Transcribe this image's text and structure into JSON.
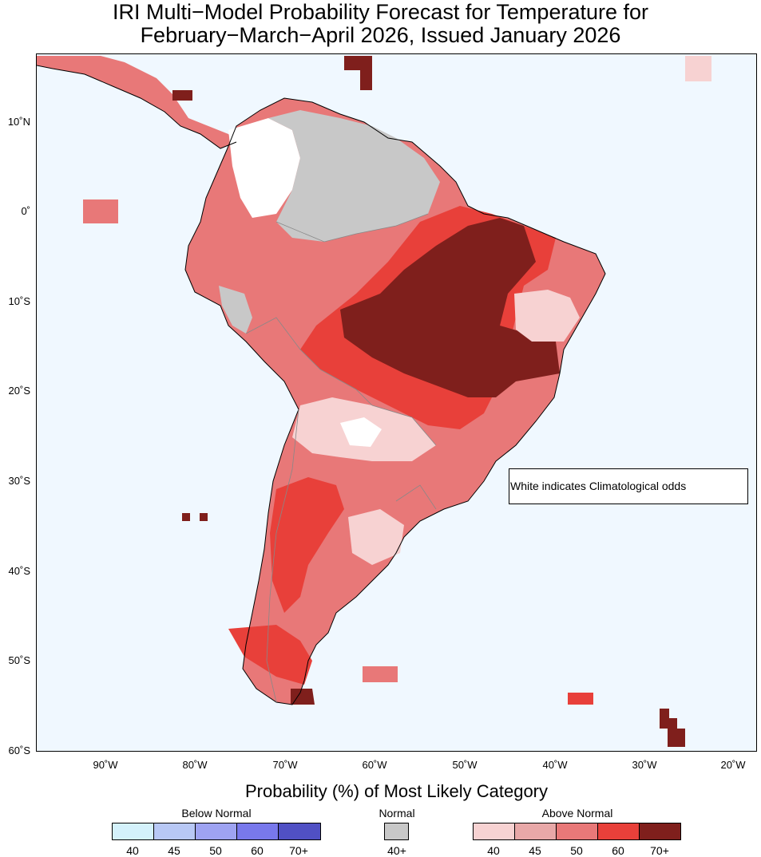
{
  "title": {
    "line1": "IRI Multi−Model Probability Forecast for Temperature for",
    "line2": "February−March−April 2026, Issued January 2026"
  },
  "map": {
    "lat_labels": [
      "10˚N",
      "0˚",
      "10˚S",
      "20˚S",
      "30˚S",
      "40˚S",
      "50˚S",
      "60˚S"
    ],
    "lon_labels": [
      "90˚W",
      "80˚W",
      "70˚W",
      "60˚W",
      "50˚W",
      "40˚W",
      "30˚W",
      "20˚W"
    ],
    "ocean_color": "#f0f8ff",
    "note": "White indicates Climatological odds"
  },
  "legend": {
    "title": "Probability (%) of Most Likely Category",
    "below_normal": {
      "label": "Below Normal",
      "levels": [
        "40",
        "45",
        "50",
        "60",
        "70+"
      ],
      "colors": [
        "#d4f1fb",
        "#b8c8f5",
        "#9ea3f2",
        "#7878ec",
        "#5050c4"
      ]
    },
    "normal": {
      "label": "Normal",
      "levels": [
        "40+"
      ],
      "colors": [
        "#c8c8c8"
      ]
    },
    "above_normal": {
      "label": "Above Normal",
      "levels": [
        "40",
        "45",
        "50",
        "60",
        "70+"
      ],
      "colors": [
        "#f7d2d2",
        "#e8a8a8",
        "#e87878",
        "#e8403a",
        "#7f1f1c"
      ]
    }
  }
}
